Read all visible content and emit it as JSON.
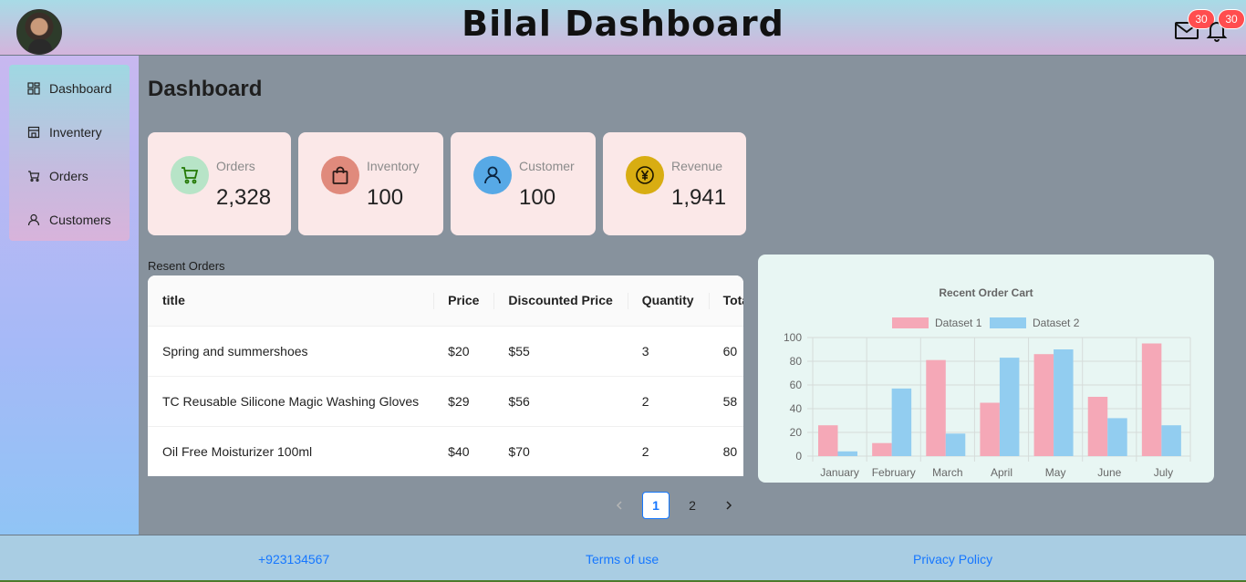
{
  "header": {
    "title": "Bilal Dashboard",
    "mail_count": "30",
    "notification_count": "30"
  },
  "sidebar": {
    "items": [
      {
        "label": "Dashboard",
        "icon": "dashboard-icon"
      },
      {
        "label": "Inventery",
        "icon": "shop-icon"
      },
      {
        "label": "Orders",
        "icon": "cart-icon"
      },
      {
        "label": "Customers",
        "icon": "user-icon"
      }
    ]
  },
  "main": {
    "title": "Dashboard",
    "cards": [
      {
        "label": "Orders",
        "value": "2,328",
        "icon": "cart-icon",
        "icon_bg": "#b7e4c7",
        "icon_color": "#237804"
      },
      {
        "label": "Inventory",
        "value": "100",
        "icon": "shopping-bag-icon",
        "icon_bg": "#e08a7c",
        "icon_color": "#2b1a17"
      },
      {
        "label": "Customer",
        "value": "100",
        "icon": "user-icon",
        "icon_bg": "#57a9e6",
        "icon_color": "#0c2540"
      },
      {
        "label": "Revenue",
        "value": "1,941",
        "icon": "yen-icon",
        "icon_bg": "#d8ad12",
        "icon_color": "#1a1400"
      }
    ],
    "recent_orders": {
      "label": "Resent Orders",
      "columns": [
        "title",
        "Price",
        "Discounted Price",
        "Quantity",
        "Total"
      ],
      "rows": [
        [
          "Spring and summershoes",
          "$20",
          "$55",
          "3",
          "60"
        ],
        [
          "TC Reusable Silicone Magic Washing Gloves",
          "$29",
          "$56",
          "2",
          "58"
        ],
        [
          "Oil Free Moisturizer 100ml",
          "$40",
          "$70",
          "2",
          "80"
        ]
      ],
      "pagination": {
        "pages": [
          "1",
          "2"
        ],
        "current": "1"
      }
    }
  },
  "chart_data": {
    "type": "bar",
    "title": "Recent Order Cart",
    "categories": [
      "January",
      "February",
      "March",
      "April",
      "May",
      "June",
      "July"
    ],
    "series": [
      {
        "name": "Dataset 1",
        "values": [
          26,
          11,
          81,
          45,
          86,
          50,
          95
        ],
        "color": "#f5a8b7"
      },
      {
        "name": "Dataset 2",
        "values": [
          4,
          57,
          19,
          83,
          90,
          32,
          26
        ],
        "color": "#92cdf0"
      }
    ],
    "ylim": [
      0,
      100
    ],
    "yticks": [
      "0",
      "20",
      "40",
      "60",
      "80",
      "100"
    ],
    "legend": "top",
    "grid": true
  },
  "footer": {
    "phone": "+923134567",
    "terms": "Terms of use",
    "privacy": "Privacy Policy"
  }
}
